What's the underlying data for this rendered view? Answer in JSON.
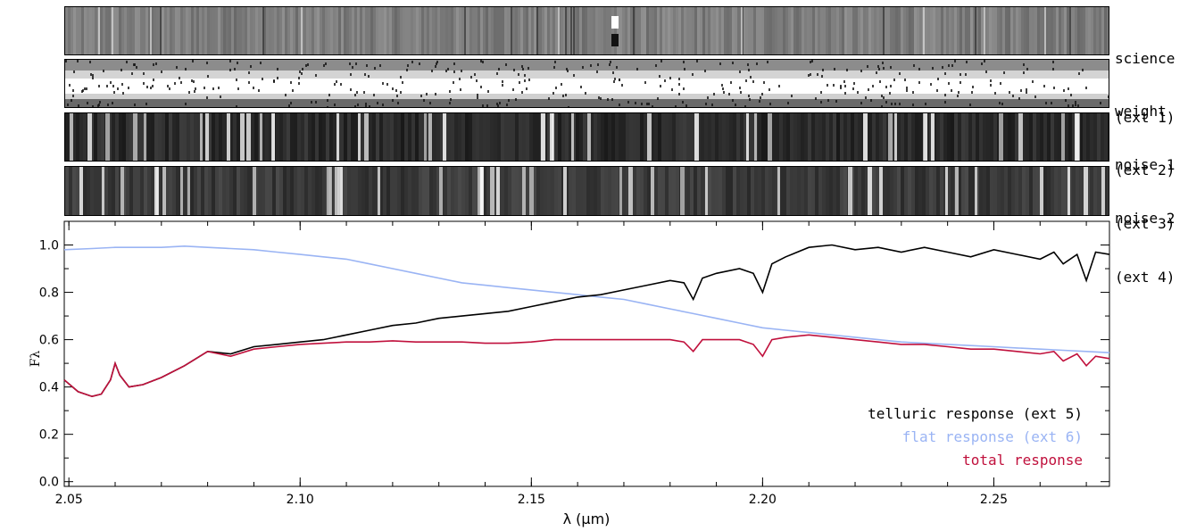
{
  "panels": [
    {
      "name": "science",
      "ext": "(ext 1)"
    },
    {
      "name": "weight",
      "ext": "(ext 2)"
    },
    {
      "name": "noise 1",
      "ext": "(ext 3)"
    },
    {
      "name": "noise 2",
      "ext": "(ext 4)"
    }
  ],
  "chart_data": {
    "type": "line",
    "xlabel": "λ (μm)",
    "ylabel": "Fλ",
    "xlim": [
      2.049,
      2.275
    ],
    "ylim": [
      -0.02,
      1.1
    ],
    "xticks": [
      2.05,
      2.1,
      2.15,
      2.2,
      2.25
    ],
    "xtick_labels": [
      "2.05",
      "2.10",
      "2.15",
      "2.20",
      "2.25"
    ],
    "yticks": [
      0.0,
      0.2,
      0.4,
      0.6,
      0.8,
      1.0
    ],
    "ytick_labels": [
      "0.0",
      "0.2",
      "0.4",
      "0.6",
      "0.8",
      "1.0"
    ],
    "legend_position": "bottom-right",
    "series": [
      {
        "name": "telluric response (ext 5)",
        "color": "#000000",
        "x": [
          2.049,
          2.052,
          2.055,
          2.057,
          2.059,
          2.06,
          2.061,
          2.063,
          2.066,
          2.07,
          2.075,
          2.08,
          2.085,
          2.09,
          2.095,
          2.1,
          2.105,
          2.11,
          2.115,
          2.12,
          2.125,
          2.13,
          2.135,
          2.14,
          2.145,
          2.15,
          2.155,
          2.16,
          2.165,
          2.17,
          2.175,
          2.18,
          2.183,
          2.185,
          2.187,
          2.19,
          2.195,
          2.198,
          2.2,
          2.202,
          2.205,
          2.21,
          2.215,
          2.22,
          2.225,
          2.23,
          2.235,
          2.24,
          2.245,
          2.25,
          2.255,
          2.26,
          2.263,
          2.265,
          2.268,
          2.27,
          2.272,
          2.275
        ],
        "y": [
          0.43,
          0.38,
          0.36,
          0.37,
          0.43,
          0.5,
          0.45,
          0.4,
          0.41,
          0.44,
          0.49,
          0.55,
          0.54,
          0.57,
          0.58,
          0.59,
          0.6,
          0.62,
          0.64,
          0.66,
          0.67,
          0.69,
          0.7,
          0.71,
          0.72,
          0.74,
          0.76,
          0.78,
          0.79,
          0.81,
          0.83,
          0.85,
          0.84,
          0.77,
          0.86,
          0.88,
          0.9,
          0.88,
          0.8,
          0.92,
          0.95,
          0.99,
          1.0,
          0.98,
          0.99,
          0.97,
          0.99,
          0.97,
          0.95,
          0.98,
          0.96,
          0.94,
          0.97,
          0.92,
          0.96,
          0.85,
          0.97,
          0.96
        ]
      },
      {
        "name": "flat response (ext 6)",
        "color": "#9ab4f4",
        "x": [
          2.049,
          2.055,
          2.06,
          2.065,
          2.07,
          2.075,
          2.08,
          2.085,
          2.09,
          2.095,
          2.1,
          2.105,
          2.11,
          2.115,
          2.12,
          2.125,
          2.13,
          2.135,
          2.14,
          2.145,
          2.15,
          2.155,
          2.16,
          2.165,
          2.17,
          2.175,
          2.18,
          2.185,
          2.19,
          2.195,
          2.2,
          2.205,
          2.21,
          2.215,
          2.22,
          2.225,
          2.23,
          2.235,
          2.24,
          2.245,
          2.25,
          2.255,
          2.26,
          2.265,
          2.27,
          2.275
        ],
        "y": [
          0.98,
          0.985,
          0.99,
          0.99,
          0.99,
          0.995,
          0.99,
          0.985,
          0.98,
          0.97,
          0.96,
          0.95,
          0.94,
          0.92,
          0.9,
          0.88,
          0.86,
          0.84,
          0.83,
          0.82,
          0.81,
          0.8,
          0.79,
          0.78,
          0.77,
          0.75,
          0.73,
          0.71,
          0.69,
          0.67,
          0.65,
          0.64,
          0.63,
          0.62,
          0.61,
          0.6,
          0.59,
          0.585,
          0.58,
          0.575,
          0.57,
          0.565,
          0.56,
          0.555,
          0.55,
          0.545
        ]
      },
      {
        "name": "total response",
        "color": "#c0103c",
        "x": [
          2.049,
          2.052,
          2.055,
          2.057,
          2.059,
          2.06,
          2.061,
          2.063,
          2.066,
          2.07,
          2.075,
          2.08,
          2.085,
          2.09,
          2.095,
          2.1,
          2.105,
          2.11,
          2.115,
          2.12,
          2.125,
          2.13,
          2.135,
          2.14,
          2.145,
          2.15,
          2.155,
          2.16,
          2.165,
          2.17,
          2.175,
          2.18,
          2.183,
          2.185,
          2.187,
          2.19,
          2.195,
          2.198,
          2.2,
          2.202,
          2.205,
          2.21,
          2.215,
          2.22,
          2.225,
          2.23,
          2.235,
          2.24,
          2.245,
          2.25,
          2.255,
          2.26,
          2.263,
          2.265,
          2.268,
          2.27,
          2.272,
          2.275
        ],
        "y": [
          0.43,
          0.38,
          0.36,
          0.37,
          0.43,
          0.5,
          0.45,
          0.4,
          0.41,
          0.44,
          0.49,
          0.55,
          0.53,
          0.56,
          0.57,
          0.58,
          0.585,
          0.59,
          0.59,
          0.595,
          0.59,
          0.59,
          0.59,
          0.585,
          0.585,
          0.59,
          0.6,
          0.6,
          0.6,
          0.6,
          0.6,
          0.6,
          0.59,
          0.55,
          0.6,
          0.6,
          0.6,
          0.58,
          0.53,
          0.6,
          0.61,
          0.62,
          0.61,
          0.6,
          0.59,
          0.58,
          0.58,
          0.57,
          0.56,
          0.56,
          0.55,
          0.54,
          0.55,
          0.51,
          0.54,
          0.49,
          0.53,
          0.52
        ]
      }
    ]
  }
}
